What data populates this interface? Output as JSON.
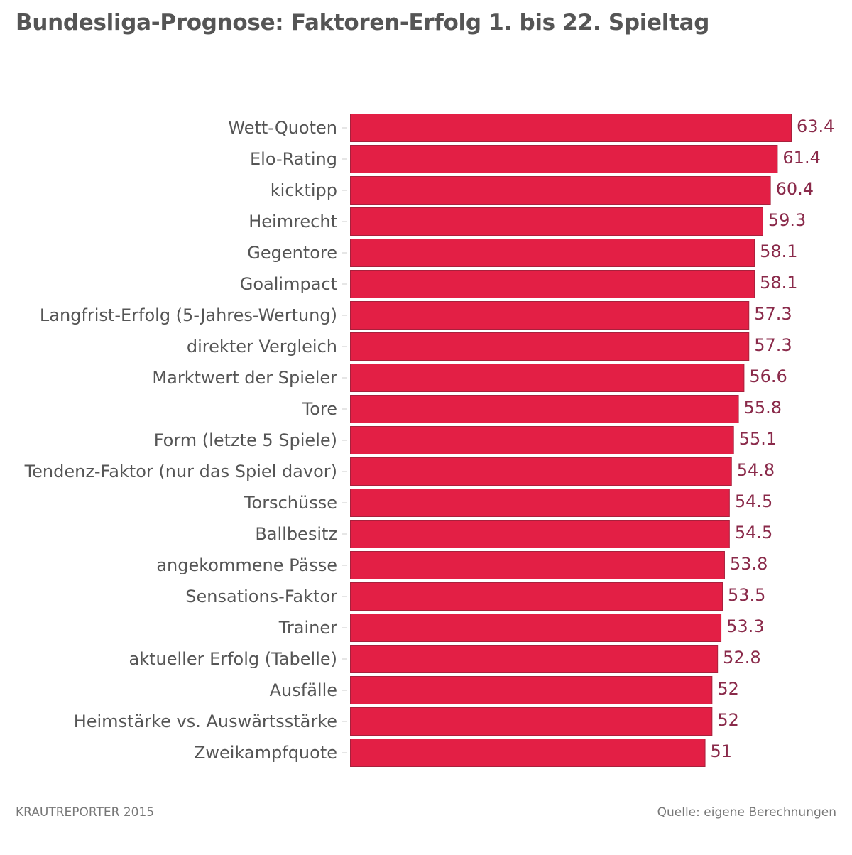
{
  "chart_data": {
    "type": "bar",
    "orientation": "horizontal",
    "title": "Bundesliga-Prognose: Faktoren-Erfolg 1. bis 22. Spieltag",
    "categories": [
      "Wett-Quoten",
      "Elo-Rating",
      "kicktipp",
      "Heimrecht",
      "Gegentore",
      "Goalimpact",
      "Langfrist-Erfolg (5-Jahres-Wertung)",
      "direkter Vergleich",
      "Marktwert der Spieler",
      "Tore",
      "Form (letzte 5 Spiele)",
      "Tendenz-Faktor (nur das Spiel davor)",
      "Torschüsse",
      "Ballbesitz",
      "angekommene Pässe",
      "Sensations-Faktor",
      "Trainer",
      "aktueller Erfolg (Tabelle)",
      "Ausfälle",
      "Heimstärke vs. Auswärtsstärke",
      "Zweikampfquote"
    ],
    "values": [
      63.4,
      61.4,
      60.4,
      59.3,
      58.1,
      58.1,
      57.3,
      57.3,
      56.6,
      55.8,
      55.1,
      54.8,
      54.5,
      54.5,
      53.8,
      53.5,
      53.3,
      52.8,
      52,
      52,
      51
    ],
    "xlim": [
      0,
      63.4
    ],
    "grid": false,
    "bar_color": "#e31f45",
    "label_color": "#8a2a4a"
  },
  "footer": {
    "credit": "KRAUTREPORTER 2015",
    "source": "Quelle: eigene Berechnungen"
  }
}
